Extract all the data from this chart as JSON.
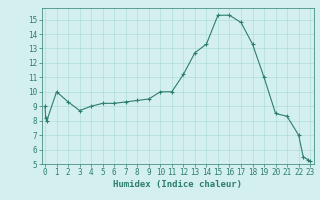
{
  "xlabel": "Humidex (Indice chaleur)",
  "x": [
    0,
    0.05,
    0.15,
    1,
    2,
    3,
    4,
    5,
    6,
    7,
    8,
    9,
    10,
    11,
    12,
    13,
    14,
    15,
    16,
    17,
    18,
    19,
    20,
    21,
    22,
    22.4,
    22.8,
    23
  ],
  "y": [
    9.0,
    8.2,
    8.0,
    10.0,
    9.3,
    8.7,
    9.0,
    9.2,
    9.2,
    9.3,
    9.4,
    9.5,
    10.0,
    10.0,
    11.2,
    12.7,
    13.3,
    15.3,
    15.3,
    14.8,
    13.3,
    11.0,
    8.5,
    8.3,
    7.0,
    5.5,
    5.3,
    5.2
  ],
  "line_color": "#2d7d6e",
  "marker_color": "#2d7d6e",
  "bg_color": "#d4f0ee",
  "grid_color": "#b0ddd8",
  "tick_color": "#2d7d6e",
  "ylim": [
    5,
    15.8
  ],
  "xlim": [
    -0.3,
    23.3
  ],
  "yticks": [
    5,
    6,
    7,
    8,
    9,
    10,
    11,
    12,
    13,
    14,
    15
  ],
  "xticks": [
    0,
    1,
    2,
    3,
    4,
    5,
    6,
    7,
    8,
    9,
    10,
    11,
    12,
    13,
    14,
    15,
    16,
    17,
    18,
    19,
    20,
    21,
    22,
    23
  ],
  "label_fontsize": 6.5,
  "tick_fontsize": 5.5
}
